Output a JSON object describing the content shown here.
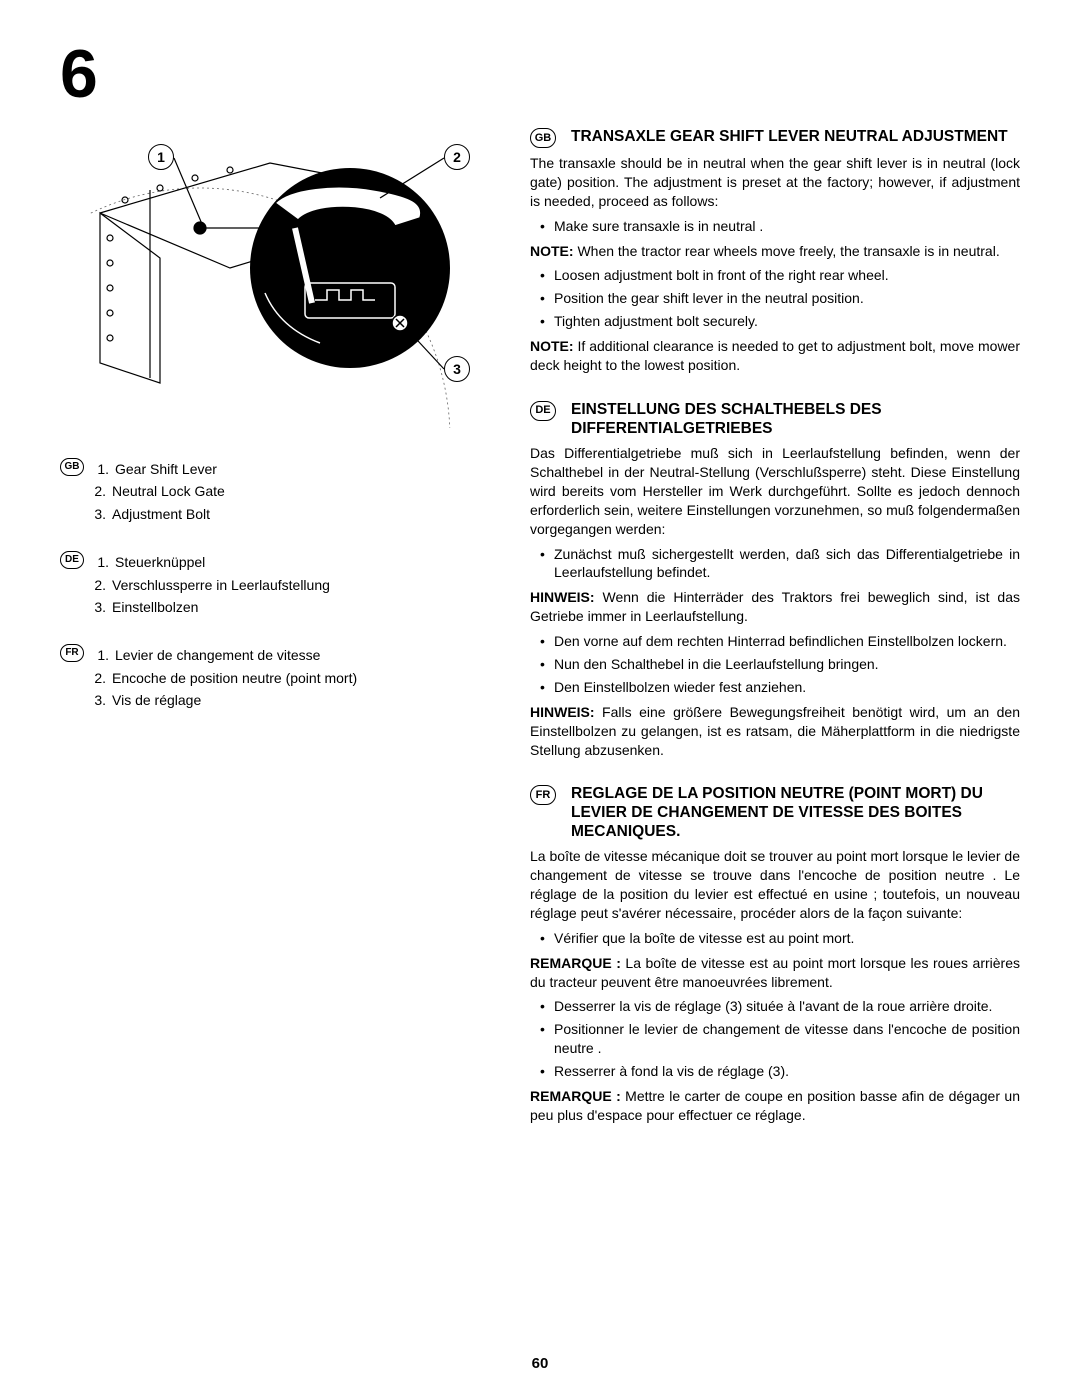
{
  "chapter_number": "6",
  "page_number": "60",
  "diagram": {
    "callouts": [
      "1",
      "2",
      "3"
    ]
  },
  "legends": [
    {
      "badge": "GB",
      "items": [
        "Gear Shift Lever",
        "Neutral Lock Gate",
        "Adjustment Bolt"
      ]
    },
    {
      "badge": "DE",
      "items": [
        "Steuerknüppel",
        "Verschlussperre in Leerlaufstellung",
        "Einstellbolzen"
      ]
    },
    {
      "badge": "FR",
      "items": [
        "Levier de changement de vitesse",
        "Encoche de position neutre (point mort)",
        "Vis de réglage"
      ]
    }
  ],
  "sections": [
    {
      "badge": "GB",
      "title": "TRANSAXLE GEAR SHIFT LEVER NEUTRAL ADJUSTMENT",
      "intro": "The transaxle should be in neutral when the gear shift lever is in neutral (lock gate) position. The adjustment is preset at the factory; however, if adjustment is needed, proceed as follows:",
      "bullets1": [
        "Make sure transaxle is in neutral ."
      ],
      "note1_label": "NOTE:",
      "note1": " When the tractor rear wheels move freely, the transaxle is in neutral.",
      "bullets2": [
        "Loosen adjustment bolt in front of the right rear wheel.",
        "Position the gear shift lever in the neutral position.",
        "Tighten adjustment bolt securely."
      ],
      "note2_label": "NOTE:",
      "note2": " If additional clearance is needed to get to adjustment bolt, move mower deck height to the lowest position."
    },
    {
      "badge": "DE",
      "title": "EINSTELLUNG DES SCHALTHEBELS DES DIFFERENTIALGETRIEBES",
      "intro": "Das Differentialgetriebe muß sich in Leerlaufstellung befinden, wenn der Schalthebel in der Neutral-Stellung (Verschlußsperre) steht. Diese Einstellung wird bereits vom Hersteller im Werk durchgeführt. Sollte es jedoch dennoch erforderlich sein, weitere Einstellungen vorzunehmen, so muß folgendermaßen vorgegangen werden:",
      "bullets1": [
        "Zunächst muß sichergestellt werden, daß sich das Differentialgetriebe in Leerlaufstellung befindet."
      ],
      "note1_label": "HINWEIS:",
      "note1": " Wenn die Hinterräder des Traktors frei beweglich sind, ist das Getriebe immer in Leerlaufstellung.",
      "bullets2": [
        "Den vorne auf dem rechten Hinterrad befindlichen Einstellbolzen lockern.",
        "Nun den Schalthebel in die Leerlaufstellung bringen.",
        "Den Einstellbolzen wieder fest anziehen."
      ],
      "note2_label": "HINWEIS:",
      "note2": " Falls eine größere Bewegungsfreiheit benötigt wird, um an den Einstellbolzen zu gelangen, ist es ratsam, die Mäherplattform in die niedrigste Stellung abzusenken."
    },
    {
      "badge": "FR",
      "title": "REGLAGE DE LA POSITION NEUTRE (POINT MORT) DU LEVIER DE CHANGEMENT DE VITESSE DES BOITES MECANIQUES.",
      "intro": "La boîte de vitesse mécanique doit se trouver au point mort lorsque le levier de changement de vitesse se trouve dans l'encoche de position neutre . Le réglage de la position du levier est effectué en usine ; toutefois, un nouveau réglage peut s'avérer nécessaire, procéder alors de la façon suivante:",
      "bullets1": [
        "Vérifier que la boîte de vitesse est au point mort."
      ],
      "note1_label": "REMARQUE :",
      "note1": " La boîte de vitesse est au point mort lorsque les roues arrières du tracteur peuvent être manoeuvrées librement.",
      "bullets2": [
        "Desserrer la vis de réglage (3) située à l'avant de la roue arrière droite.",
        "Positionner le levier de changement de vitesse dans l'encoche de position neutre .",
        "Resserrer à fond la vis de réglage (3)."
      ],
      "note2_label": "REMARQUE :",
      "note2": " Mettre le carter de coupe en position basse afin de dégager un peu plus d'espace pour effectuer ce réglage."
    }
  ]
}
